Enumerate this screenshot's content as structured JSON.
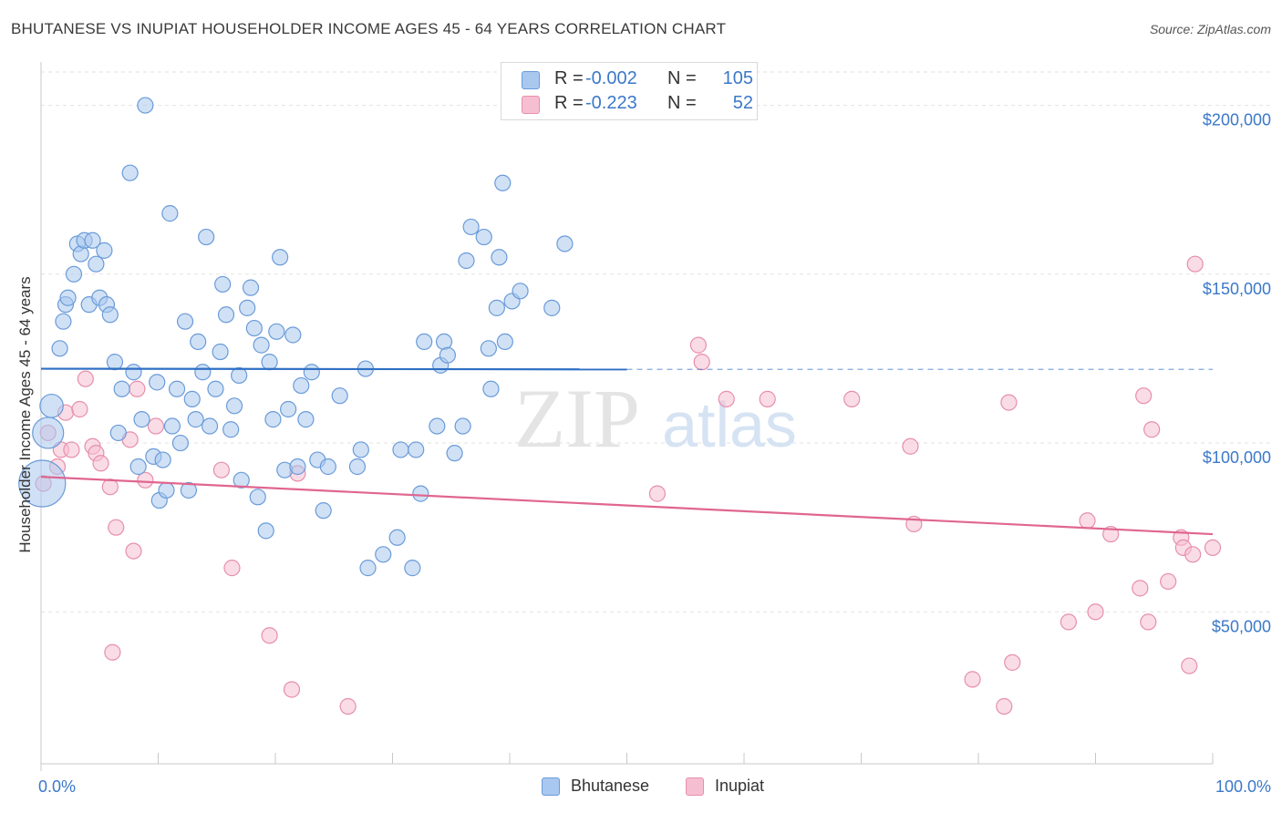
{
  "header": {
    "title": "BHUTANESE VS INUPIAT HOUSEHOLDER INCOME AGES 45 - 64 YEARS CORRELATION CHART",
    "source": "Source: ZipAtlas.com"
  },
  "watermark": {
    "zip": "ZIP",
    "atlas": "atlas"
  },
  "legend": {
    "r_label": "R =",
    "n_label": "N =",
    "entries": [
      {
        "name": "Bhutanese",
        "r": "-0.002",
        "n": "105"
      },
      {
        "name": "Inupiat",
        "r": "-0.223",
        "n": "52"
      }
    ]
  },
  "colors": {
    "bhutanese_fill": "#a9c8ef",
    "bhutanese_stroke": "#6a9bd8",
    "bhutanese_line": "#2f6fc4",
    "inupiat_fill": "#f6bfd1",
    "inupiat_stroke": "#e68fac",
    "inupiat_line": "#e06690",
    "axis_text": "#3b78c9",
    "grid": "#e2e2e2"
  },
  "chart_data": {
    "type": "scatter",
    "title": "BHUTANESE VS INUPIAT HOUSEHOLDER INCOME AGES 45 - 64 YEARS CORRELATION CHART",
    "xlabel": "",
    "ylabel": "Householder Income Ages 45 - 64 years",
    "xlim": [
      0,
      100
    ],
    "ylim": [
      5000,
      215000
    ],
    "x_tick_labels": [
      "0.0%",
      "100.0%"
    ],
    "y_ticks": [
      50000,
      100000,
      150000,
      200000
    ],
    "y_tick_labels": [
      "$50,000",
      "$100,000",
      "$150,000",
      "$200,000"
    ],
    "grid": true,
    "legend_position": "top-center",
    "series": [
      {
        "name": "Bhutanese",
        "trend": {
          "x": [
            0,
            50
          ],
          "y": [
            122000,
            121800
          ],
          "dashed_extension_to": 100
        },
        "points": [
          [
            0.1,
            88000,
            3
          ],
          [
            0.6,
            103000,
            2
          ],
          [
            0.9,
            111000,
            1.5
          ],
          [
            1.6,
            128000,
            1
          ],
          [
            1.9,
            136000,
            1
          ],
          [
            2.1,
            141000,
            1
          ],
          [
            2.3,
            143000,
            1
          ],
          [
            2.8,
            150000,
            1
          ],
          [
            3.1,
            159000,
            1
          ],
          [
            3.4,
            156000,
            1
          ],
          [
            3.7,
            160000,
            1
          ],
          [
            4.1,
            141000,
            1
          ],
          [
            4.4,
            160000,
            1
          ],
          [
            4.7,
            153000,
            1
          ],
          [
            5.0,
            143000,
            1
          ],
          [
            5.4,
            157000,
            1
          ],
          [
            5.6,
            141000,
            1
          ],
          [
            5.9,
            138000,
            1
          ],
          [
            6.3,
            124000,
            1
          ],
          [
            6.6,
            103000,
            1
          ],
          [
            6.9,
            116000,
            1
          ],
          [
            7.6,
            180000,
            1
          ],
          [
            7.9,
            121000,
            1
          ],
          [
            8.3,
            93000,
            1
          ],
          [
            8.6,
            107000,
            1
          ],
          [
            8.9,
            200000,
            1
          ],
          [
            9.6,
            96000,
            1
          ],
          [
            9.9,
            118000,
            1
          ],
          [
            10.1,
            83000,
            1
          ],
          [
            10.4,
            95000,
            1
          ],
          [
            10.7,
            86000,
            1
          ],
          [
            11.0,
            168000,
            1
          ],
          [
            11.2,
            105000,
            1
          ],
          [
            11.6,
            116000,
            1
          ],
          [
            11.9,
            100000,
            1
          ],
          [
            12.3,
            136000,
            1
          ],
          [
            12.6,
            86000,
            1
          ],
          [
            12.9,
            113000,
            1
          ],
          [
            13.2,
            107000,
            1
          ],
          [
            13.4,
            130000,
            1
          ],
          [
            13.8,
            121000,
            1
          ],
          [
            14.1,
            161000,
            1
          ],
          [
            14.4,
            105000,
            1
          ],
          [
            14.9,
            116000,
            1
          ],
          [
            15.3,
            127000,
            1
          ],
          [
            15.5,
            147000,
            1
          ],
          [
            15.8,
            138000,
            1
          ],
          [
            16.2,
            104000,
            1
          ],
          [
            16.5,
            111000,
            1
          ],
          [
            16.9,
            120000,
            1
          ],
          [
            17.1,
            89000,
            1
          ],
          [
            17.6,
            140000,
            1
          ],
          [
            17.9,
            146000,
            1
          ],
          [
            18.2,
            134000,
            1
          ],
          [
            18.5,
            84000,
            1
          ],
          [
            18.8,
            129000,
            1
          ],
          [
            19.2,
            74000,
            1
          ],
          [
            19.5,
            124000,
            1
          ],
          [
            19.8,
            107000,
            1
          ],
          [
            20.1,
            133000,
            1
          ],
          [
            20.4,
            155000,
            1
          ],
          [
            20.8,
            92000,
            1
          ],
          [
            21.1,
            110000,
            1
          ],
          [
            21.5,
            132000,
            1
          ],
          [
            21.9,
            93000,
            1
          ],
          [
            22.2,
            117000,
            1
          ],
          [
            22.6,
            107000,
            1
          ],
          [
            23.1,
            121000,
            1
          ],
          [
            23.6,
            95000,
            1
          ],
          [
            24.1,
            80000,
            1
          ],
          [
            24.5,
            93000,
            1
          ],
          [
            25.5,
            114000,
            1
          ],
          [
            27.0,
            93000,
            1
          ],
          [
            27.3,
            98000,
            1
          ],
          [
            27.7,
            122000,
            1
          ],
          [
            27.9,
            63000,
            1
          ],
          [
            29.2,
            67000,
            1
          ],
          [
            30.4,
            72000,
            1
          ],
          [
            30.7,
            98000,
            1
          ],
          [
            31.7,
            63000,
            1
          ],
          [
            32.0,
            98000,
            1
          ],
          [
            32.4,
            85000,
            1
          ],
          [
            32.7,
            130000,
            1
          ],
          [
            33.8,
            105000,
            1
          ],
          [
            34.1,
            123000,
            1
          ],
          [
            34.4,
            130000,
            1
          ],
          [
            34.7,
            126000,
            1
          ],
          [
            35.3,
            97000,
            1
          ],
          [
            36.0,
            105000,
            1
          ],
          [
            36.3,
            154000,
            1
          ],
          [
            36.7,
            164000,
            1
          ],
          [
            37.8,
            161000,
            1
          ],
          [
            38.2,
            128000,
            1
          ],
          [
            38.4,
            116000,
            1
          ],
          [
            38.9,
            140000,
            1
          ],
          [
            39.1,
            155000,
            1
          ],
          [
            39.4,
            177000,
            1
          ],
          [
            39.6,
            130000,
            1
          ],
          [
            40.2,
            142000,
            1
          ],
          [
            40.9,
            145000,
            1
          ],
          [
            43.6,
            140000,
            1
          ],
          [
            44.7,
            159000,
            1
          ]
        ]
      },
      {
        "name": "Inupiat",
        "trend": {
          "x": [
            0,
            100
          ],
          "y": [
            90000,
            73000
          ]
        },
        "points": [
          [
            0.2,
            88000,
            1
          ],
          [
            0.6,
            103000,
            1
          ],
          [
            1.4,
            93000,
            1
          ],
          [
            1.7,
            98000,
            1
          ],
          [
            2.1,
            109000,
            1
          ],
          [
            2.6,
            98000,
            1
          ],
          [
            3.3,
            110000,
            1
          ],
          [
            3.8,
            119000,
            1
          ],
          [
            4.4,
            99000,
            1
          ],
          [
            4.7,
            97000,
            1
          ],
          [
            5.1,
            94000,
            1
          ],
          [
            5.9,
            87000,
            1
          ],
          [
            6.1,
            38000,
            1
          ],
          [
            6.4,
            75000,
            1
          ],
          [
            7.6,
            101000,
            1
          ],
          [
            7.9,
            68000,
            1
          ],
          [
            8.2,
            116000,
            1
          ],
          [
            8.9,
            89000,
            1
          ],
          [
            9.8,
            105000,
            1
          ],
          [
            15.4,
            92000,
            1
          ],
          [
            16.3,
            63000,
            1
          ],
          [
            19.5,
            43000,
            1
          ],
          [
            21.4,
            27000,
            1
          ],
          [
            21.9,
            91000,
            1
          ],
          [
            26.2,
            22000,
            1
          ],
          [
            52.6,
            85000,
            1
          ],
          [
            56.1,
            129000,
            1
          ],
          [
            56.4,
            124000,
            1
          ],
          [
            58.5,
            113000,
            1
          ],
          [
            62.0,
            113000,
            1
          ],
          [
            69.2,
            113000,
            1
          ],
          [
            74.2,
            99000,
            1
          ],
          [
            74.5,
            76000,
            1
          ],
          [
            79.5,
            30000,
            1
          ],
          [
            82.2,
            22000,
            1
          ],
          [
            82.6,
            112000,
            1
          ],
          [
            82.9,
            35000,
            1
          ],
          [
            87.7,
            47000,
            1
          ],
          [
            89.3,
            77000,
            1
          ],
          [
            90.0,
            50000,
            1
          ],
          [
            91.3,
            73000,
            1
          ],
          [
            93.8,
            57000,
            1
          ],
          [
            94.1,
            114000,
            1
          ],
          [
            94.5,
            47000,
            1
          ],
          [
            94.8,
            104000,
            1
          ],
          [
            96.2,
            59000,
            1
          ],
          [
            97.3,
            72000,
            1
          ],
          [
            97.5,
            69000,
            1
          ],
          [
            98.0,
            34000,
            1
          ],
          [
            98.3,
            67000,
            1
          ],
          [
            98.5,
            153000,
            1
          ],
          [
            100.0,
            69000,
            1
          ]
        ]
      }
    ]
  }
}
